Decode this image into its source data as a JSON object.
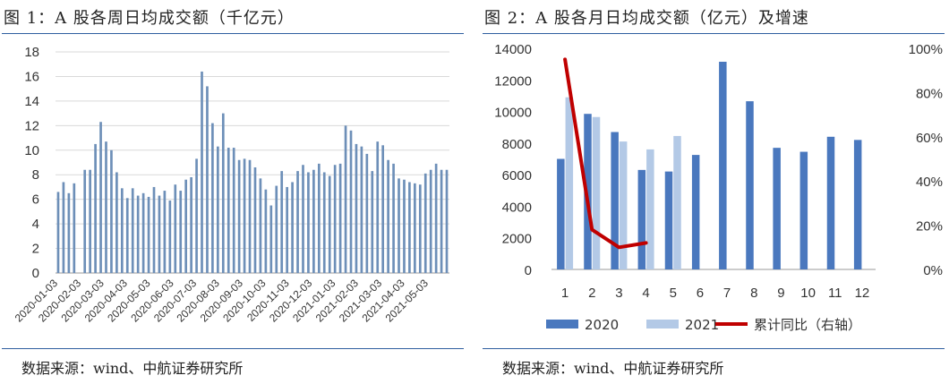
{
  "left": {
    "title": "图 1：A 股各周日均成交额（千亿元）",
    "source": "数据来源：wind、中航证券研究所",
    "chart_data": {
      "type": "bar",
      "title": "A 股各周日均成交额（千亿元）",
      "ylim": [
        0,
        18
      ],
      "yticks": [
        "0",
        "2",
        "4",
        "6",
        "8",
        "10",
        "12",
        "14",
        "16",
        "18"
      ],
      "ytick_values": [
        0,
        2,
        4,
        6,
        8,
        10,
        12,
        14,
        16,
        18
      ],
      "grid": true,
      "color": "#6d8fb8",
      "x_tick_labels": [
        "2020-01-03",
        "2020-02-03",
        "2020-03-03",
        "2020-04-03",
        "2020-05-03",
        "2020-06-03",
        "2020-07-03",
        "2020-08-03",
        "2020-09-03",
        "2020-10-03",
        "2020-11-03",
        "2020-12-03",
        "2021-01-03",
        "2021-02-03",
        "2021-03-03",
        "2021-04-03",
        "2021-05-03"
      ],
      "x_tick_positions": [
        0,
        4.4,
        8.7,
        13.1,
        17.4,
        21.8,
        26.1,
        30.4,
        34.8,
        39.1,
        43.5,
        47.8,
        52.2,
        56.5,
        60.9,
        65.2,
        69.6
      ],
      "values": [
        6.6,
        7.4,
        6.5,
        7.3,
        0,
        8.4,
        8.4,
        10.5,
        12.3,
        10.7,
        10.0,
        8.2,
        6.9,
        6.1,
        6.9,
        6.3,
        6.5,
        6.2,
        7.0,
        6.3,
        6.7,
        5.9,
        7.2,
        6.7,
        7.6,
        7.8,
        9.3,
        16.4,
        15.2,
        12.2,
        10.3,
        13.0,
        10.2,
        10.2,
        9.2,
        9.3,
        9.2,
        8.6,
        7.7,
        6.8,
        5.5,
        7.1,
        8.3,
        7.0,
        7.4,
        8.3,
        8.8,
        8.2,
        8.4,
        8.9,
        8.2,
        7.9,
        8.8,
        8.9,
        12.0,
        11.6,
        10.5,
        10.3,
        9.7,
        8.3,
        10.7,
        10.4,
        9.2,
        8.9,
        7.7,
        7.6,
        7.4,
        7.3,
        7.2,
        8.1,
        8.4,
        8.9,
        8.4,
        8.4
      ]
    }
  },
  "right": {
    "title": "图 2：A 股各月日均成交额（亿元）及增速",
    "source": "数据来源：wind、中航证券研究所",
    "chart_data": {
      "type": "bar",
      "title": "A 股各月日均成交额（亿元）及增速",
      "categories": [
        "1",
        "2",
        "3",
        "4",
        "5",
        "6",
        "7",
        "8",
        "9",
        "10",
        "11",
        "12"
      ],
      "ylim": [
        0,
        14000
      ],
      "yticks": [
        "0",
        "2000",
        "4000",
        "6000",
        "8000",
        "10000",
        "12000",
        "14000"
      ],
      "ytick_values": [
        0,
        2000,
        4000,
        6000,
        8000,
        10000,
        12000,
        14000
      ],
      "y2lim": [
        0,
        1
      ],
      "y2ticks": [
        "0%",
        "20%",
        "40%",
        "60%",
        "80%",
        "100%"
      ],
      "y2tick_values": [
        0,
        0.2,
        0.4,
        0.6,
        0.8,
        1.0
      ],
      "grid": false,
      "legend_position": "bottom",
      "series": [
        {
          "name": "2020",
          "type": "bar",
          "axis": "left",
          "color": "#4a78be",
          "values": [
            7000,
            9850,
            8700,
            6300,
            6200,
            7250,
            13150,
            10650,
            7700,
            7450,
            8400,
            8200
          ]
        },
        {
          "name": "2021",
          "type": "bar",
          "axis": "left",
          "color": "#b3c9e6",
          "values": [
            10900,
            9650,
            8100,
            7600,
            8450,
            null,
            null,
            null,
            null,
            null,
            null,
            null
          ]
        },
        {
          "name": "累计同比（右轴）",
          "type": "line",
          "axis": "right",
          "color": "#c00000",
          "values": [
            0.95,
            0.18,
            0.1,
            0.12,
            null,
            null,
            null,
            null,
            null,
            null,
            null,
            null
          ]
        }
      ]
    }
  }
}
